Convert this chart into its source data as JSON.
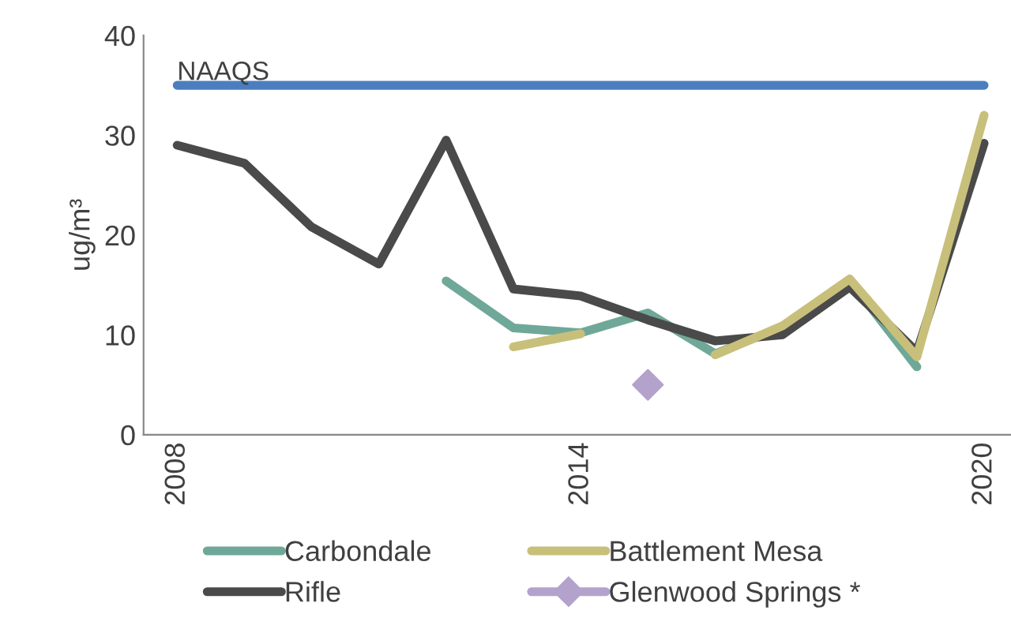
{
  "chart_data": {
    "type": "line",
    "ylabel": "ug/m³",
    "x": [
      2008,
      2009,
      2010,
      2011,
      2012,
      2013,
      2014,
      2015,
      2016,
      2017,
      2018,
      2019,
      2020
    ],
    "series": [
      {
        "name": "Carbondale",
        "color": "#6fa898",
        "values": [
          null,
          null,
          null,
          null,
          15.4,
          10.7,
          10.2,
          12.2,
          8.1,
          10.8,
          15.5,
          6.8,
          null
        ]
      },
      {
        "name": "Rifle",
        "color": "#4a4a4a",
        "values": [
          29,
          27.2,
          20.8,
          17.1,
          29.5,
          14.6,
          13.9,
          11.5,
          9.4,
          10,
          14.8,
          8.3,
          29.2
        ]
      },
      {
        "name": "Battlement Mesa",
        "color": "#c8c07a",
        "values": [
          null,
          null,
          null,
          null,
          null,
          8.8,
          10.1,
          null,
          8.0,
          10.9,
          15.6,
          7.8,
          32
        ]
      },
      {
        "name": "Glenwood Springs *",
        "color": "#b3a2cc",
        "type": "scatter",
        "marker": "diamond",
        "values": [
          null,
          null,
          null,
          null,
          null,
          null,
          null,
          5.0,
          null,
          null,
          null,
          null,
          null
        ]
      }
    ],
    "ref_lines": [
      {
        "axis": "y",
        "value": 35,
        "label": "NAAQS",
        "color": "#4a7ebf"
      }
    ],
    "xlim": [
      2007.5,
      2020.4
    ],
    "xticks": [
      2008,
      2014,
      2020
    ],
    "ylim": [
      0,
      40
    ],
    "yticks": [
      0,
      10,
      20,
      30,
      40
    ],
    "grid": false,
    "legend": "bottom"
  }
}
